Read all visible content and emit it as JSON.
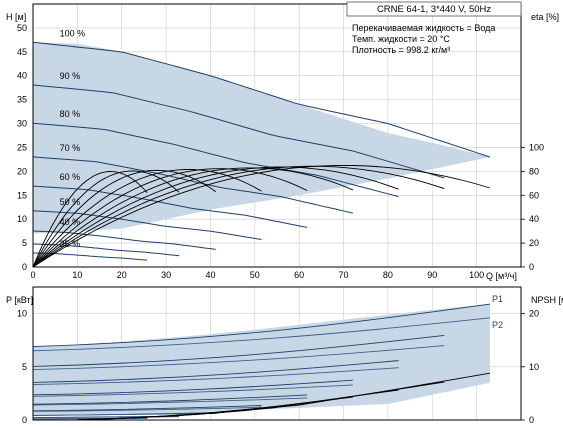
{
  "chart_data": [
    {
      "type": "line",
      "xlabel": "Q [м³/ч]",
      "ylabel_left": "H [м]",
      "ylabel_right": "eta [%]",
      "xlim": [
        0,
        110
      ],
      "ylim_left": [
        0,
        55
      ],
      "ylim_right": [
        0,
        100
      ],
      "xticks": [
        "0",
        "10",
        "20",
        "30",
        "40",
        "50",
        "60",
        "70",
        "80",
        "90",
        "100"
      ],
      "yticks_left": [
        "0",
        "5",
        "10",
        "15",
        "20",
        "25",
        "30",
        "35",
        "40",
        "45",
        "50"
      ],
      "yticks_right": [
        "0",
        "20",
        "40",
        "60",
        "80",
        "100"
      ],
      "grid": true,
      "info": {
        "title": "CRNE 64-1, 3*440 V, 50Hz",
        "liquid": "Перекачиваемая жидкость = Вода",
        "temp": "Темп. жидкости = 20 °C",
        "density": "Плотность = 998.2 кг/м³"
      },
      "speed_curves": [
        {
          "name": "100 %",
          "s": 1.0
        },
        {
          "name": "90 %",
          "s": 0.9
        },
        {
          "name": "80 %",
          "s": 0.8
        },
        {
          "name": "70 %",
          "s": 0.7
        },
        {
          "name": "60 %",
          "s": 0.6
        },
        {
          "name": "50 %",
          "s": 0.5
        },
        {
          "name": "40 %",
          "s": 0.4
        },
        {
          "name": "25 %",
          "s": 0.25
        },
        {
          "s": 0.32
        }
      ],
      "qh_100": {
        "x": [
          0,
          20,
          40,
          60,
          80,
          103
        ],
        "y": [
          47,
          45,
          40,
          34,
          30,
          23
        ]
      },
      "envelope": {
        "x": [
          0,
          10,
          20,
          30,
          40,
          50,
          60,
          70,
          80,
          90,
          103,
          80,
          60,
          40,
          30,
          20,
          10,
          0
        ],
        "y": [
          47,
          46.7,
          45,
          42.5,
          40,
          37,
          34,
          31,
          28,
          26,
          23,
          18.5,
          15,
          12,
          10,
          8,
          7.5,
          7
        ]
      },
      "eta_peak": {
        "q": 70,
        "eta": 85
      }
    },
    {
      "type": "line",
      "ylabel_left": "P [кВт]",
      "ylabel_right": "NPSH [м]",
      "xlim": [
        0,
        110
      ],
      "ylim_left": [
        0,
        12.5
      ],
      "ylim_right": [
        0,
        25
      ],
      "yticks_left": [
        "0",
        "5",
        "10"
      ],
      "yticks_right": [
        "0",
        "10",
        "20"
      ],
      "series": [
        {
          "name": "P1",
          "x": [
            0,
            103
          ],
          "y": [
            6.9,
            10.9
          ]
        },
        {
          "name": "P2",
          "x": [
            0,
            103
          ],
          "y": [
            6.5,
            9.6
          ]
        }
      ],
      "npsh_100": {
        "x": [
          40,
          60,
          80,
          103
        ],
        "y": [
          1.2,
          2.8,
          5.5,
          8.8
        ]
      }
    }
  ]
}
